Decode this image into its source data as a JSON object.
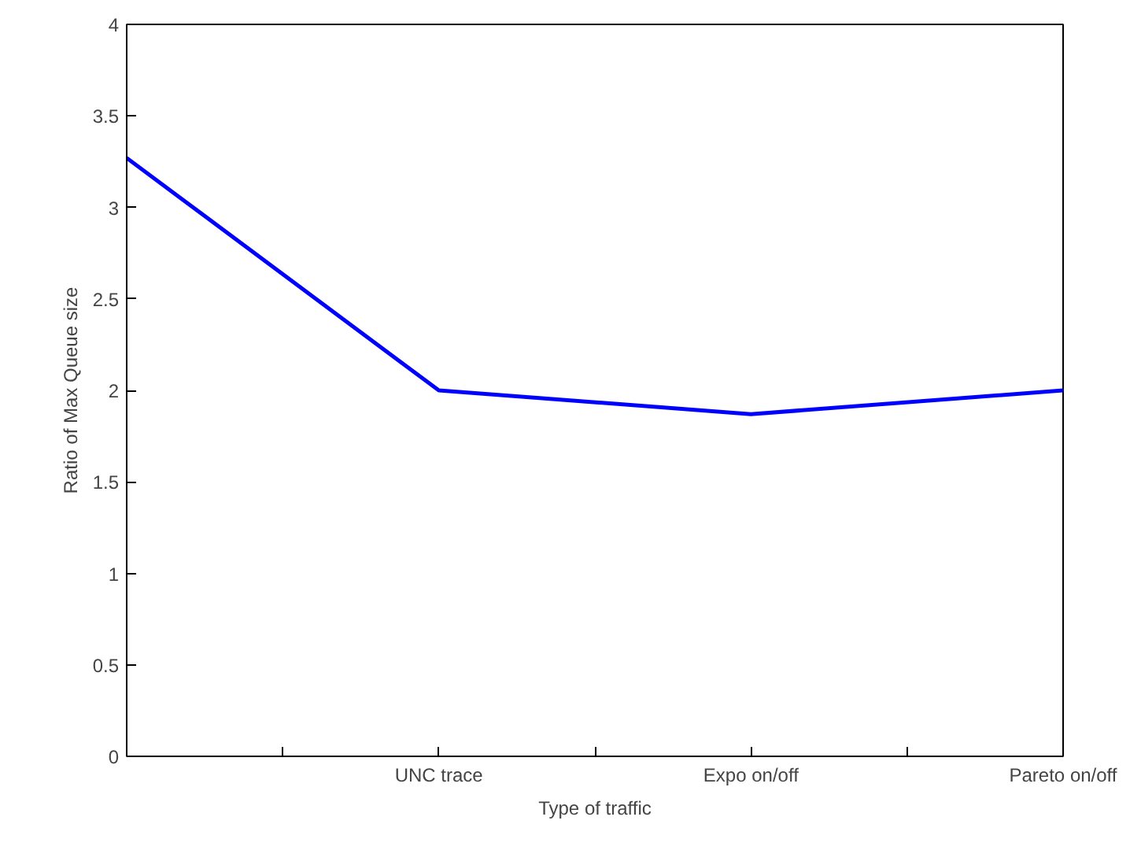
{
  "chart_data": {
    "type": "line",
    "xlabel": "Type of traffic",
    "ylabel": "Ratio of Max Queue size",
    "categories": [
      null,
      "UNC trace",
      "Expo on/off",
      "Pareto on/off"
    ],
    "series": [
      {
        "color": "#0000ff",
        "values": [
          3.27,
          2.0,
          1.87,
          2.0
        ]
      }
    ],
    "ylim": [
      0,
      4
    ],
    "yticks": [
      0,
      0.5,
      1,
      1.5,
      2,
      2.5,
      3,
      3.5,
      4
    ],
    "grid": false,
    "marker": "none",
    "line_style": "solid"
  }
}
